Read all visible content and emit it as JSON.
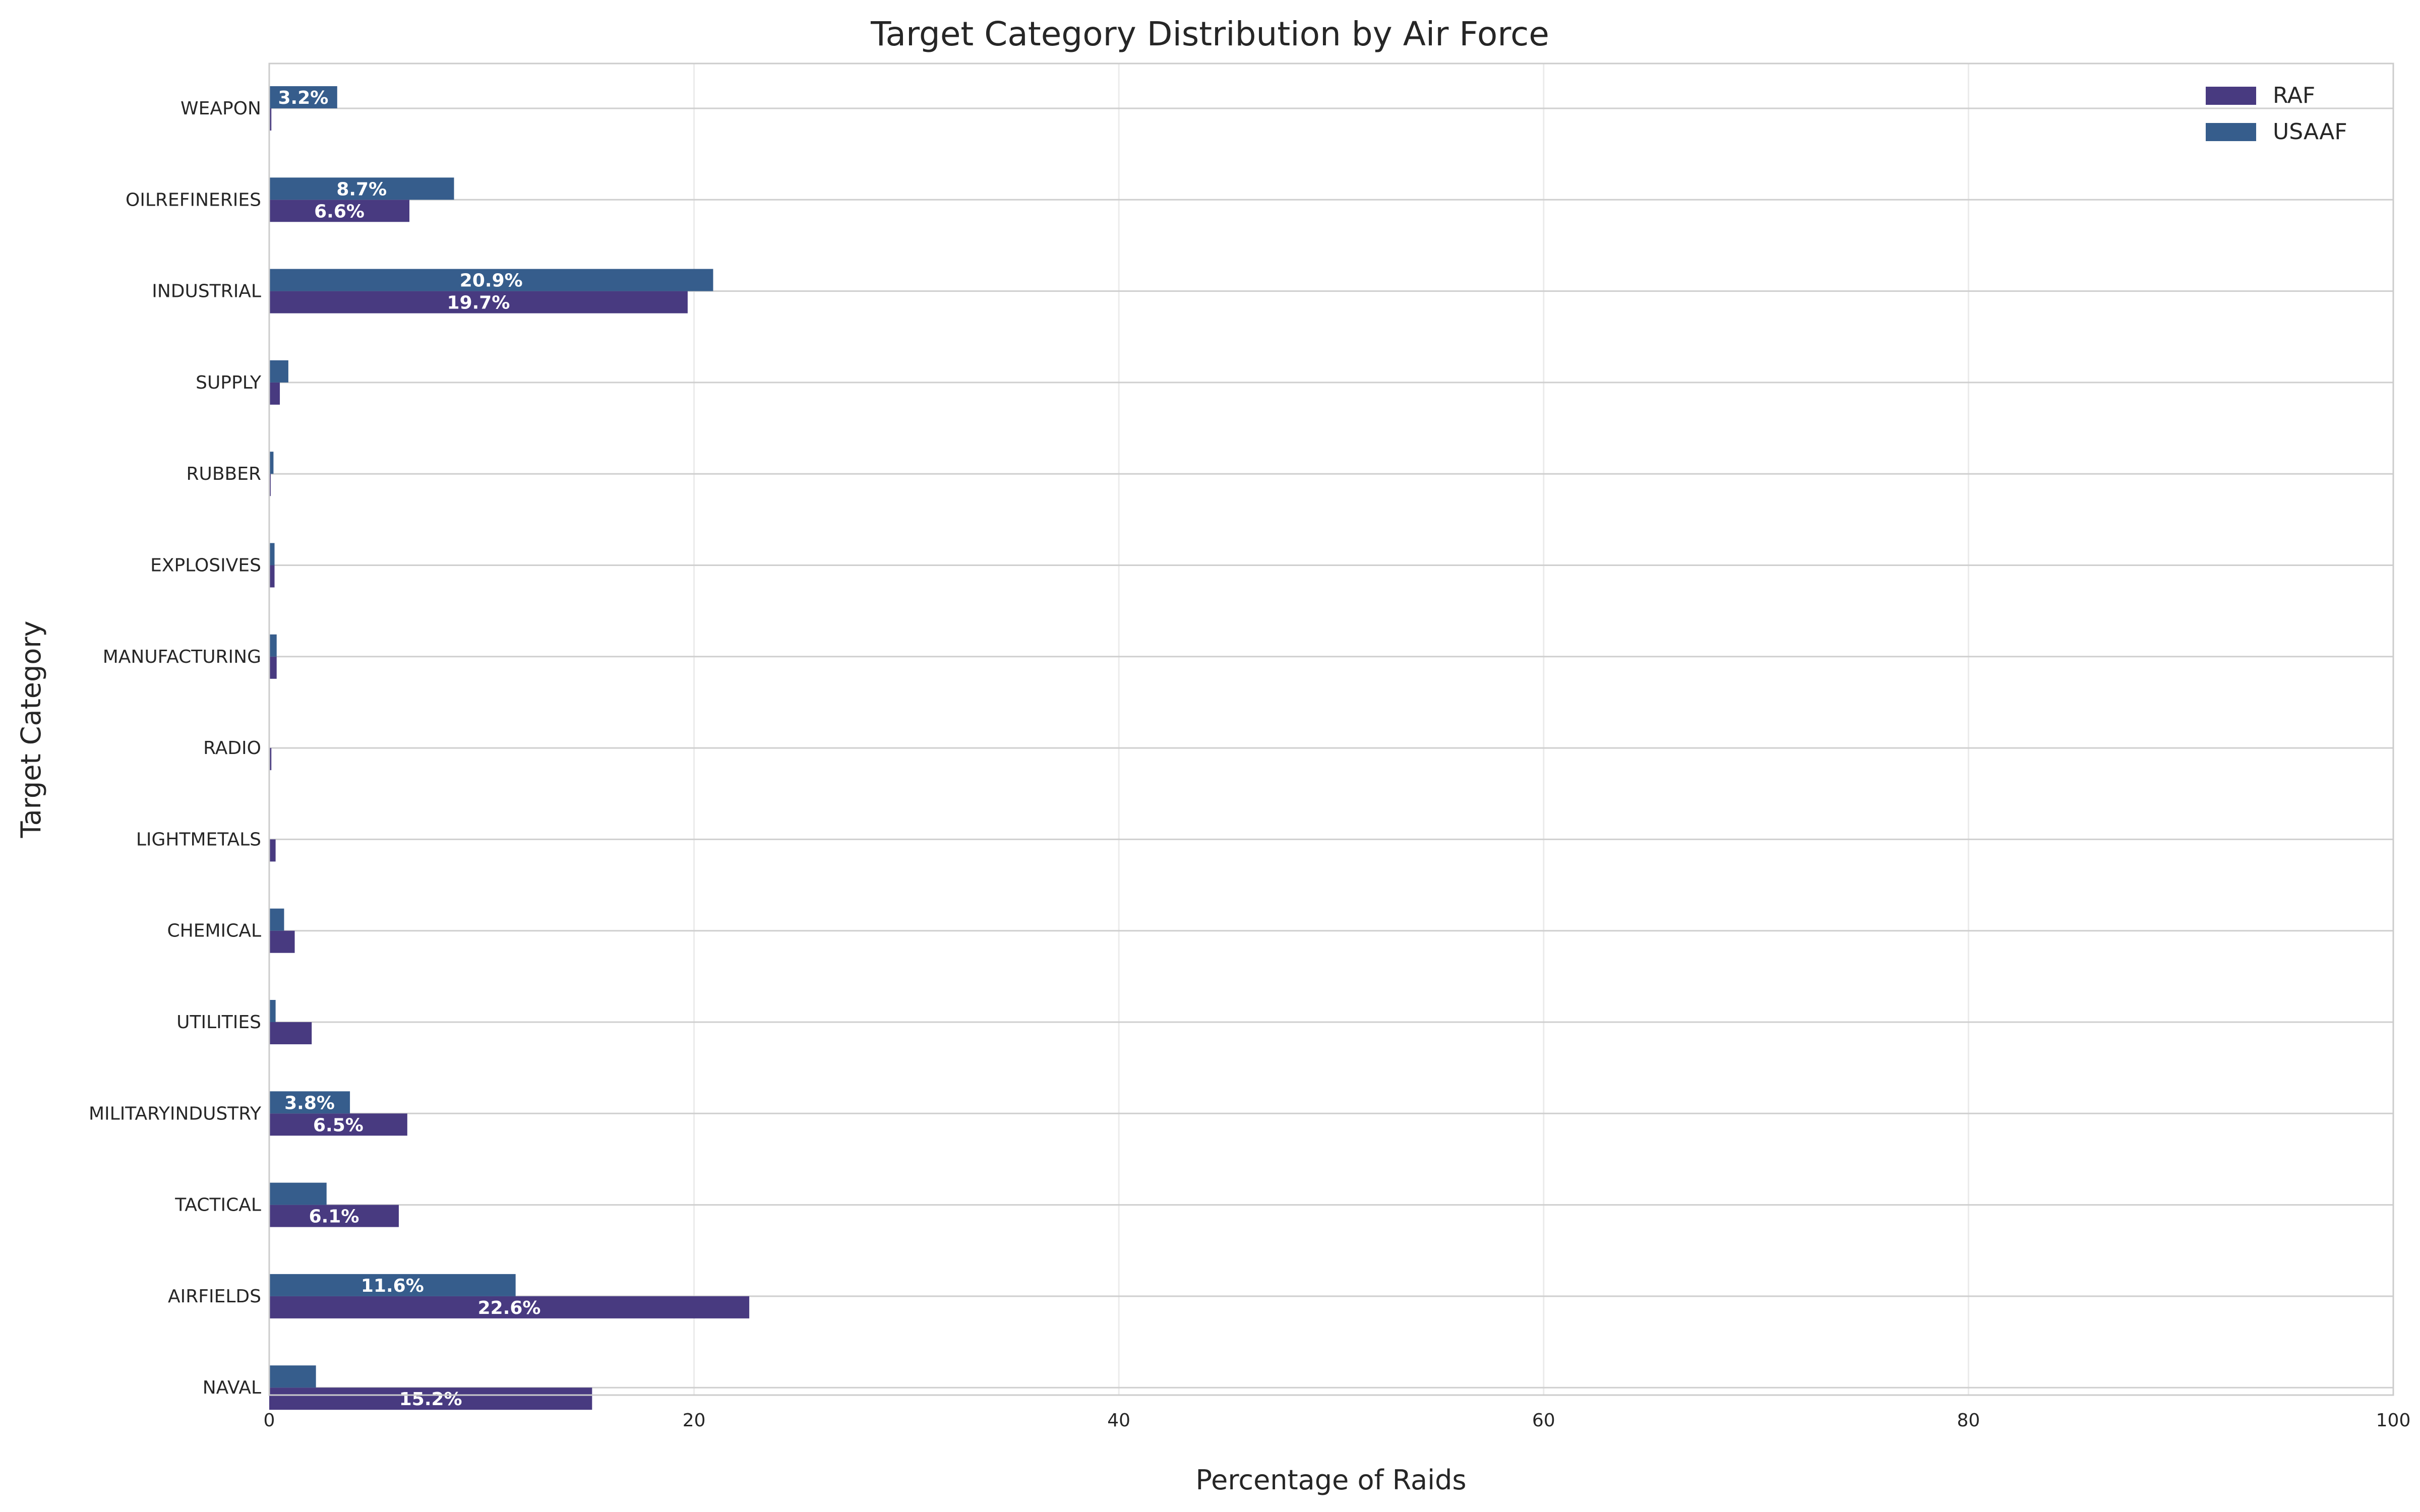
{
  "chart_data": {
    "type": "bar",
    "orientation": "horizontal",
    "title": "Target Category Distribution by Air Force",
    "xlabel": "Percentage of Raids",
    "ylabel": "Target Category",
    "xlim": [
      0,
      100
    ],
    "xticks": [
      0,
      20,
      40,
      60,
      80,
      100
    ],
    "grid": true,
    "legend_position": "top-right",
    "categories": [
      "NAVAL",
      "AIRFIELDS",
      "TACTICAL",
      "MILITARYINDUSTRY",
      "UTILITIES",
      "CHEMICAL",
      "LIGHTMETALS",
      "RADIO",
      "MANUFACTURING",
      "EXPLOSIVES",
      "RUBBER",
      "SUPPLY",
      "INDUSTRIAL",
      "OILREFINERIES",
      "WEAPON"
    ],
    "series": [
      {
        "name": "RAF",
        "color": "#483a80",
        "values": [
          15.2,
          22.6,
          6.1,
          6.5,
          2.0,
          1.2,
          0.3,
          0.1,
          0.35,
          0.25,
          0.05,
          0.5,
          19.7,
          6.6,
          0.1
        ],
        "labels": [
          "15.2%",
          "22.6%",
          "6.1%",
          "6.5%",
          "",
          "",
          "",
          "",
          "",
          "",
          "",
          "",
          "19.7%",
          "6.6%",
          ""
        ]
      },
      {
        "name": "USAAF",
        "color": "#365d8c",
        "values": [
          2.2,
          11.6,
          2.7,
          3.8,
          0.3,
          0.7,
          0.0,
          0.0,
          0.35,
          0.25,
          0.2,
          0.9,
          20.9,
          8.7,
          3.2
        ],
        "labels": [
          "",
          "11.6%",
          "",
          "3.8%",
          "",
          "",
          "",
          "",
          "",
          "",
          "",
          "",
          "20.9%",
          "8.7%",
          "3.2%"
        ]
      }
    ]
  }
}
